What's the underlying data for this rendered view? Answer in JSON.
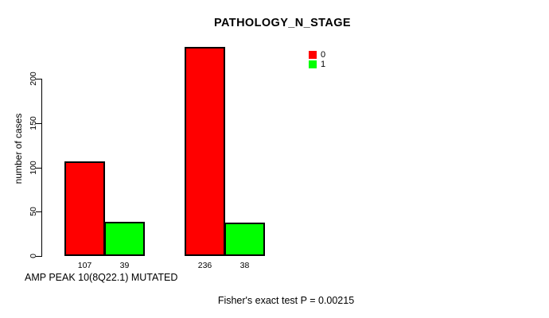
{
  "chart_data": {
    "type": "bar",
    "title": "PATHOLOGY_N_STAGE",
    "ylabel": "number of cases",
    "xlabel": "AMP PEAK 10(8Q22.1) MUTATED",
    "annotation": "Fisher's exact test P = 0.00215",
    "ylim": [
      0,
      240
    ],
    "yticks": [
      0,
      50,
      100,
      150,
      200
    ],
    "series": [
      {
        "name": "0",
        "color": "#ff0000",
        "values": [
          107,
          236
        ]
      },
      {
        "name": "1",
        "color": "#00ff00",
        "values": [
          39,
          38
        ]
      }
    ],
    "bar_labels": [
      "107",
      "39",
      "236",
      "38"
    ],
    "legend_position": "top-right",
    "grid": false,
    "bar_border_color": "#000000",
    "axis_color": "#000000",
    "text_color": "#000000",
    "background": "#ffffff"
  }
}
